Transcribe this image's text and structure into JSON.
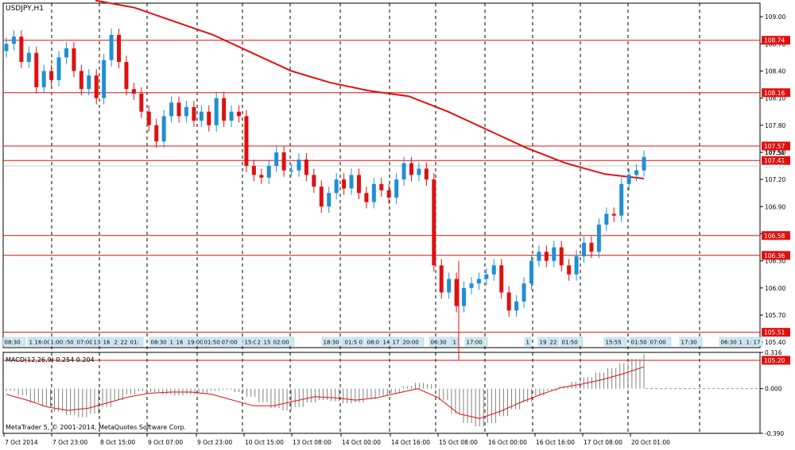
{
  "window": {
    "title": "USDJPY,H1"
  },
  "chart_data": [
    {
      "type": "candlestick",
      "symbol": "USDJPY",
      "timeframe": "H1",
      "title": "USDJPY,H1",
      "ylim": [
        105.34,
        109.15
      ],
      "y_ticks": [
        "109.00",
        "108.70",
        "108.40",
        "108.10",
        "107.80",
        "107.50",
        "107.20",
        "106.90",
        "106.60",
        "106.30",
        "106.00",
        "105.70",
        "105.40"
      ],
      "ma_line": [
        109.18,
        109.1,
        108.95,
        108.8,
        108.6,
        108.4,
        108.27,
        108.18,
        108.12,
        107.95,
        107.75,
        107.55,
        107.38,
        107.26,
        107.21
      ],
      "candles": [
        108.7,
        108.78,
        108.5,
        108.6,
        108.22,
        108.4,
        108.3,
        108.55,
        108.65,
        108.4,
        108.2,
        108.35,
        108.1,
        108.52,
        108.8,
        108.5,
        108.2,
        108.15,
        107.95,
        107.8,
        107.62,
        107.9,
        108.05,
        107.9,
        108.0,
        107.85,
        107.95,
        107.8,
        108.1,
        107.85,
        107.95,
        107.9,
        107.35,
        107.25,
        107.22,
        107.35,
        107.5,
        107.3,
        107.3,
        107.42,
        107.25,
        107.12,
        106.9,
        107.05,
        107.2,
        107.1,
        107.25,
        107.05,
        106.95,
        107.15,
        107.08,
        107.0,
        107.2,
        107.38,
        107.25,
        107.32,
        107.2,
        106.25,
        105.95,
        106.1,
        105.8,
        106.0,
        106.05,
        106.1,
        106.15,
        106.25,
        105.95,
        105.75,
        105.85,
        106.05,
        106.3,
        106.4,
        106.3,
        106.45,
        106.25,
        106.15,
        106.35,
        106.5,
        106.4,
        106.7,
        106.82,
        106.8,
        107.15,
        107.25,
        107.3,
        107.45
      ],
      "hlines": [
        {
          "label": "108.74",
          "value": 108.74
        },
        {
          "label": "108.16",
          "value": 108.16
        },
        {
          "label": "107.57",
          "value": 107.57
        },
        {
          "label": "107.41",
          "value": 107.41
        },
        {
          "label": "106.58",
          "value": 106.58
        },
        {
          "label": "106.36",
          "value": 106.36
        },
        {
          "label": "105.51",
          "value": 105.51
        },
        {
          "label": "105.20",
          "value": 105.2
        }
      ],
      "price_label_overlays": [
        "107.50",
        "107.35"
      ],
      "time_labels": [
        {
          "label": "08:30"
        },
        {
          "label": "1"
        },
        {
          "label": "16:00"
        },
        {
          "label": "1:00"
        },
        {
          "label": ":50"
        },
        {
          "label": "07:00"
        },
        {
          "label": "13"
        },
        {
          "label": "16"
        },
        {
          "label": "2"
        },
        {
          "label": "22"
        },
        {
          "label": "01:"
        },
        {
          "label": "08:30"
        },
        {
          "label": "1"
        },
        {
          "label": "16"
        },
        {
          "label": "19:00"
        },
        {
          "label": "01:50"
        },
        {
          "label": "07:00"
        },
        {
          "label": "15:0"
        },
        {
          "label": "2"
        },
        {
          "label": "15"
        },
        {
          "label": "02:00"
        },
        {
          "label": "18:30"
        },
        {
          "label": "01:5"
        },
        {
          "label": "0"
        },
        {
          "label": "08:0"
        },
        {
          "label": "14"
        },
        {
          "label": "17"
        },
        {
          "label": "20:00"
        },
        {
          "label": "06:30"
        },
        {
          "label": "1"
        },
        {
          "label": "17:00"
        },
        {
          "label": "1"
        },
        {
          "label": "19"
        },
        {
          "label": "22"
        },
        {
          "label": "01:50"
        },
        {
          "label": "15:55"
        },
        {
          "label": "01:50"
        },
        {
          "label": "07:00"
        },
        {
          "label": "17:30"
        },
        {
          "label": "06:30"
        },
        {
          "label": "1"
        },
        {
          "label": "1:"
        },
        {
          "label": "17"
        }
      ]
    },
    {
      "type": "bar",
      "indicator": "MACD",
      "title": "MACD(12,26,9) 0.254 0.204",
      "ylim": [
        -0.39,
        0.316
      ],
      "y_ticks": [
        "0.316",
        "0.000",
        "-0.390"
      ],
      "histogram": [
        -0.02,
        -0.06,
        -0.12,
        -0.16,
        -0.2,
        -0.23,
        -0.25,
        -0.22,
        -0.16,
        -0.1,
        -0.05,
        -0.02,
        -0.03,
        -0.05,
        -0.06,
        -0.05,
        -0.04,
        -0.02,
        -0.01,
        -0.03,
        -0.07,
        -0.12,
        -0.17,
        -0.19,
        -0.16,
        -0.12,
        -0.1,
        -0.11,
        -0.13,
        -0.12,
        -0.09,
        -0.06,
        -0.04,
        0.02,
        0.05,
        0.04,
        -0.1,
        -0.22,
        -0.3,
        -0.33,
        -0.3,
        -0.24,
        -0.18,
        -0.12,
        -0.06,
        -0.02,
        0.02,
        0.06,
        0.1,
        0.14,
        0.18,
        0.22,
        0.26,
        0.3
      ],
      "signal_line": [
        -0.05,
        -0.1,
        -0.16,
        -0.19,
        -0.17,
        -0.12,
        -0.07,
        -0.04,
        -0.03,
        -0.03,
        -0.05,
        -0.1,
        -0.15,
        -0.15,
        -0.11,
        -0.07,
        -0.08,
        -0.1,
        -0.08,
        -0.04,
        0.0,
        -0.08,
        -0.22,
        -0.26,
        -0.2,
        -0.12,
        -0.05,
        0.01,
        0.04,
        0.08,
        0.13,
        0.19
      ]
    }
  ],
  "x_axis_labels": [
    "7 Oct 2014",
    "7 Oct 23:00",
    "8 Oct 15:00",
    "9 Oct 07:00",
    "9 Oct 23:00",
    "10 Oct 15:00",
    "13 Oct 08:00",
    "14 Oct 00:00",
    "14 Oct 16:00",
    "15 Oct 08:00",
    "16 Oct 00:00",
    "16 Oct 16:00",
    "17 Oct 08:00",
    "20 Oct 01:00"
  ],
  "footer": {
    "copyright": "MetaTrader 5, © 2001-2014, MetaQuotes Software Corp."
  },
  "colors": {
    "bull_candle": "#1f8fd6",
    "bear_candle": "#e01010",
    "level_line": "#e01010",
    "ma_line": "#e01010",
    "price_label_bg": "#e01010",
    "time_label_bg": "#cfe9f2",
    "histogram": "#808080",
    "signal_line": "#e01010"
  }
}
